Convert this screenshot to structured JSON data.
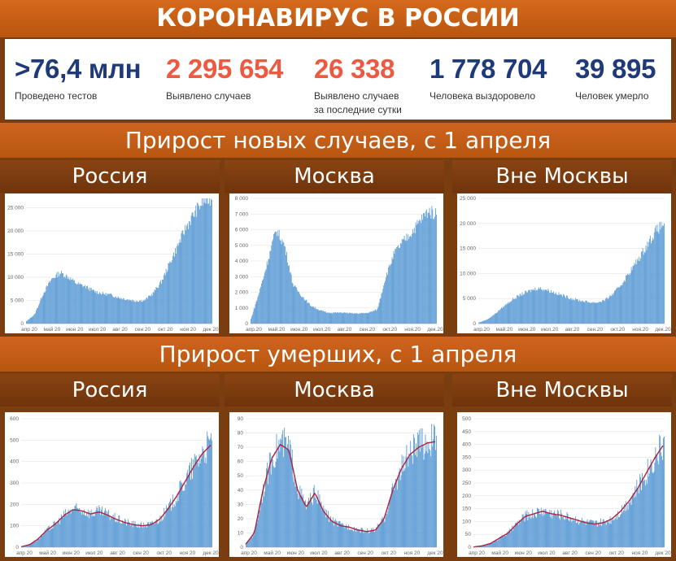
{
  "header": {
    "title": "КОРОНАВИРУС В РОССИИ"
  },
  "stats": [
    {
      "value": ">76,4 млн",
      "label": "Проведено тестов",
      "label2": "",
      "color": "#1f3a78"
    },
    {
      "value": "2 295 654",
      "label": "Выявлено случаев",
      "label2": "",
      "color": "#ec5a41"
    },
    {
      "value": "26 338",
      "label": "Выявлено случаев",
      "label2": "за последние сутки",
      "color": "#ec5a41"
    },
    {
      "value": "1 778 704",
      "label": "Человека выздоровело",
      "label2": "",
      "color": "#1f3a78"
    },
    {
      "value": "39 895",
      "label": "Человек умерло",
      "label2": "",
      "color": "#1f3a78"
    }
  ],
  "section_cases": {
    "title": "Прирост новых случаев, с 1 апреля"
  },
  "section_deaths": {
    "title": "Прирост умерших, с 1 апреля"
  },
  "colors": {
    "bar": "#5b9bd5",
    "avg_line": "#b0203a",
    "banner": "#c95d18",
    "panel_bg": "#7a3d10"
  },
  "chart_data": [
    {
      "type": "bar",
      "title": "Россия",
      "ylim": [
        0,
        27000
      ],
      "yticks": [
        "0",
        "5 000",
        "10 000",
        "15 000",
        "20 000",
        "25 000"
      ],
      "ytick_values": [
        0,
        5000,
        10000,
        15000,
        20000,
        25000
      ],
      "xticks": [
        "апр 20",
        "май 20",
        "июн 20",
        "июл 20",
        "авг 20",
        "сен 20",
        "окт 20",
        "ноя 20",
        "дек 20"
      ],
      "x_start": "2020-04-01",
      "x_end": "2020-12-01",
      "series": [
        {
          "values": [
            500,
            2000,
            6500,
            9600,
            11000,
            10000,
            8600,
            8000,
            7000,
            6500,
            6200,
            5600,
            5200,
            4900,
            5000,
            6500,
            9000,
            13000,
            17000,
            21000,
            24000,
            26500,
            27000
          ]
        }
      ]
    },
    {
      "type": "bar",
      "title": "Москва",
      "ylim": [
        0,
        8000
      ],
      "yticks": [
        "0",
        "1 000",
        "2 000",
        "3 000",
        "4 000",
        "5 000",
        "6 000",
        "7 000",
        "8 000"
      ],
      "ytick_values": [
        0,
        1000,
        2000,
        3000,
        4000,
        5000,
        6000,
        7000,
        8000
      ],
      "xticks": [
        "апр.20",
        "май.20",
        "июн.20",
        "июл.20",
        "авг.20",
        "сен.20",
        "окт.20",
        "ноя.20",
        "дек.20"
      ],
      "x_start": "2020-04-01",
      "x_end": "2020-12-01",
      "series": [
        {
          "values": [
            300,
            2000,
            4000,
            6000,
            5000,
            2500,
            1800,
            1200,
            900,
            700,
            700,
            700,
            650,
            650,
            700,
            900,
            3000,
            4500,
            5200,
            5800,
            6500,
            7200,
            7000
          ]
        }
      ]
    },
    {
      "type": "bar",
      "title": "Вне Москвы",
      "ylim": [
        0,
        25000
      ],
      "yticks": [
        "0",
        "5 000",
        "10 000",
        "15 000",
        "20 000",
        "25 000"
      ],
      "ytick_values": [
        0,
        5000,
        10000,
        15000,
        20000,
        25000
      ],
      "xticks": [
        "апр.20",
        "май.20",
        "июн.20",
        "июл.20",
        "авг.20",
        "сен.20",
        "окт.20",
        "ноя.20",
        "дек.20"
      ],
      "x_start": "2020-04-01",
      "x_end": "2020-12-01",
      "series": [
        {
          "values": [
            200,
            800,
            2000,
            3500,
            4800,
            5800,
            6500,
            7100,
            6800,
            6200,
            5600,
            5000,
            4600,
            4300,
            4200,
            4700,
            6000,
            8000,
            10500,
            13000,
            15800,
            18500,
            20000
          ]
        }
      ]
    },
    {
      "type": "bar",
      "title": "Россия",
      "ylim": [
        0,
        600
      ],
      "yticks": [
        "0",
        "100",
        "200",
        "300",
        "400",
        "500",
        "600"
      ],
      "ytick_values": [
        0,
        100,
        200,
        300,
        400,
        500,
        600
      ],
      "xticks": [
        "апр 20",
        "май 20",
        "июн 20",
        "июл 20",
        "авг 20",
        "сен 20",
        "окт 20",
        "ноя 20",
        "дек 20"
      ],
      "x_start": "2020-04-01",
      "x_end": "2020-12-01",
      "series": [
        {
          "values": [
            2,
            12,
            40,
            80,
            110,
            150,
            175,
            170,
            155,
            165,
            150,
            130,
            115,
            105,
            100,
            105,
            130,
            180,
            240,
            310,
            380,
            440,
            480
          ]
        }
      ]
    },
    {
      "type": "bar",
      "title": "Москва",
      "ylim": [
        0,
        90
      ],
      "yticks": [
        "0",
        "10",
        "20",
        "30",
        "40",
        "50",
        "60",
        "70",
        "80",
        "90"
      ],
      "ytick_values": [
        0,
        10,
        20,
        30,
        40,
        50,
        60,
        70,
        80,
        90
      ],
      "xticks": [
        "апр 20",
        "май 20",
        "июн 20",
        "июл 20",
        "авг 20",
        "сен 20",
        "окт 20",
        "ноя 20",
        "дек 20"
      ],
      "x_start": "2020-04-01",
      "x_end": "2020-12-01",
      "series": [
        {
          "values": [
            2,
            10,
            40,
            62,
            72,
            68,
            40,
            28,
            38,
            25,
            18,
            15,
            14,
            12,
            11,
            12,
            20,
            40,
            55,
            65,
            70,
            73,
            74
          ]
        }
      ]
    },
    {
      "type": "bar",
      "title": "Вне Москвы",
      "ylim": [
        0,
        500
      ],
      "yticks": [
        "0",
        "50",
        "100",
        "150",
        "200",
        "250",
        "300",
        "350",
        "400",
        "450",
        "500"
      ],
      "ytick_values": [
        0,
        50,
        100,
        150,
        200,
        250,
        300,
        350,
        400,
        450,
        500
      ],
      "xticks": [
        "апр 20",
        "май 20",
        "июн 20",
        "июл 20",
        "авг 20",
        "сен 20",
        "окт 20",
        "ноя 20",
        "дек 20"
      ],
      "x_start": "2020-04-01",
      "x_end": "2020-12-01",
      "series": [
        {
          "values": [
            1,
            5,
            15,
            35,
            55,
            90,
            120,
            130,
            140,
            130,
            125,
            115,
            105,
            95,
            90,
            95,
            110,
            140,
            180,
            230,
            290,
            350,
            400
          ]
        }
      ]
    }
  ]
}
